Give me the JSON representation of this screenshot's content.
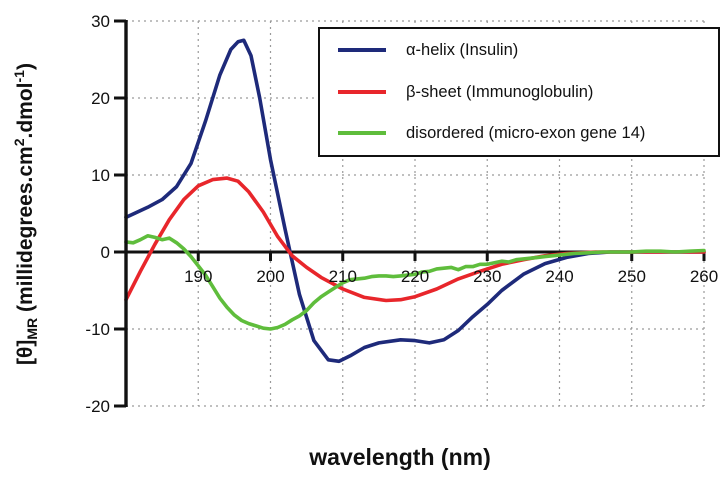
{
  "chart_data": {
    "type": "line",
    "xlabel": "wavelength (nm)",
    "ylabel": {
      "prefix": "[θ]",
      "subscript": "MR",
      "main": " (millidegrees.cm",
      "sup1": "2",
      "mid": ".dmol",
      "sup2": "-1",
      "end": ")"
    },
    "xlim": [
      180,
      260
    ],
    "ylim": [
      -20,
      30
    ],
    "x_ticks": [
      "190",
      "200",
      "210",
      "220",
      "230",
      "240",
      "250",
      "260"
    ],
    "y_ticks": [
      "-20",
      "-10",
      "0",
      "10",
      "20",
      "30"
    ],
    "grid": "dotted",
    "legend_position": "top-right",
    "series": [
      {
        "name": "α-helix (Insulin)",
        "color": "#1e2a7a",
        "x": [
          180,
          183,
          185,
          187,
          189,
          191,
          193,
          194.5,
          195.5,
          196.3,
          197.3,
          198.5,
          200,
          202,
          204,
          206,
          208,
          209.5,
          211,
          213,
          215,
          218,
          220,
          222,
          224,
          226,
          228,
          230,
          232,
          235,
          238,
          241,
          244,
          247,
          250,
          253,
          256,
          260
        ],
        "y": [
          4.5,
          5.8,
          6.8,
          8.5,
          11.5,
          17,
          23,
          26.3,
          27.3,
          27.5,
          25.5,
          20,
          12,
          3,
          -5.5,
          -11.5,
          -14,
          -14.2,
          -13.5,
          -12.4,
          -11.8,
          -11.4,
          -11.5,
          -11.8,
          -11.4,
          -10.2,
          -8.4,
          -6.8,
          -5,
          -2.9,
          -1.5,
          -0.7,
          -0.2,
          0,
          0,
          0,
          0,
          0
        ]
      },
      {
        "name": "β-sheet (Immunoglobulin)",
        "color": "#e8262b",
        "x": [
          180,
          182,
          184,
          186,
          188,
          190,
          192,
          194,
          195.5,
          197,
          199,
          201,
          203,
          205,
          207,
          210,
          213,
          216,
          218,
          220,
          223,
          226,
          229,
          232,
          235,
          238,
          241,
          245,
          250,
          255,
          260
        ],
        "y": [
          -6.2,
          -2.5,
          1,
          4.2,
          6.8,
          8.6,
          9.4,
          9.6,
          9.2,
          7.8,
          5.2,
          2,
          -0.5,
          -2,
          -3.3,
          -4.8,
          -5.9,
          -6.3,
          -6.2,
          -5.8,
          -4.8,
          -3.5,
          -2.5,
          -1.6,
          -1,
          -0.5,
          -0.2,
          0,
          0,
          0,
          0
        ]
      },
      {
        "name": "disordered (micro-exon gene 14)",
        "color": "#5fbd3c",
        "x": [
          180,
          181,
          182,
          183,
          184,
          185,
          186,
          187,
          188,
          189,
          190,
          191,
          192,
          193,
          194,
          195,
          196,
          197,
          198,
          199,
          200,
          201,
          202,
          203,
          204,
          205,
          206,
          207,
          208,
          209,
          210,
          211,
          212,
          213,
          214,
          215,
          216,
          217,
          218,
          219,
          220,
          221,
          222,
          223,
          224,
          225,
          226,
          227,
          228,
          229,
          230,
          231,
          232,
          233,
          234,
          235,
          236,
          237,
          238,
          240,
          242,
          244,
          246,
          248,
          250,
          252,
          254,
          256,
          258,
          260
        ],
        "y": [
          1.3,
          1.2,
          1.6,
          2.1,
          1.9,
          1.6,
          1.8,
          1.2,
          0.4,
          -0.6,
          -1.8,
          -3,
          -4.5,
          -6,
          -7.2,
          -8.2,
          -8.9,
          -9.3,
          -9.6,
          -9.9,
          -10,
          -9.8,
          -9.4,
          -8.8,
          -8.3,
          -7.6,
          -6.6,
          -5.8,
          -5.2,
          -4.6,
          -4,
          -3.6,
          -3.5,
          -3.4,
          -3.2,
          -3.1,
          -3.1,
          -3.2,
          -3.1,
          -3,
          -2.9,
          -2.6,
          -2.5,
          -2.2,
          -2.1,
          -2,
          -2.3,
          -1.9,
          -1.9,
          -1.6,
          -1.6,
          -1.4,
          -1.2,
          -1.3,
          -1,
          -0.9,
          -0.8,
          -0.7,
          -0.6,
          -0.4,
          -0.2,
          -0.1,
          0,
          0,
          0,
          0.1,
          0.1,
          0,
          0.1,
          0.2
        ]
      }
    ]
  }
}
